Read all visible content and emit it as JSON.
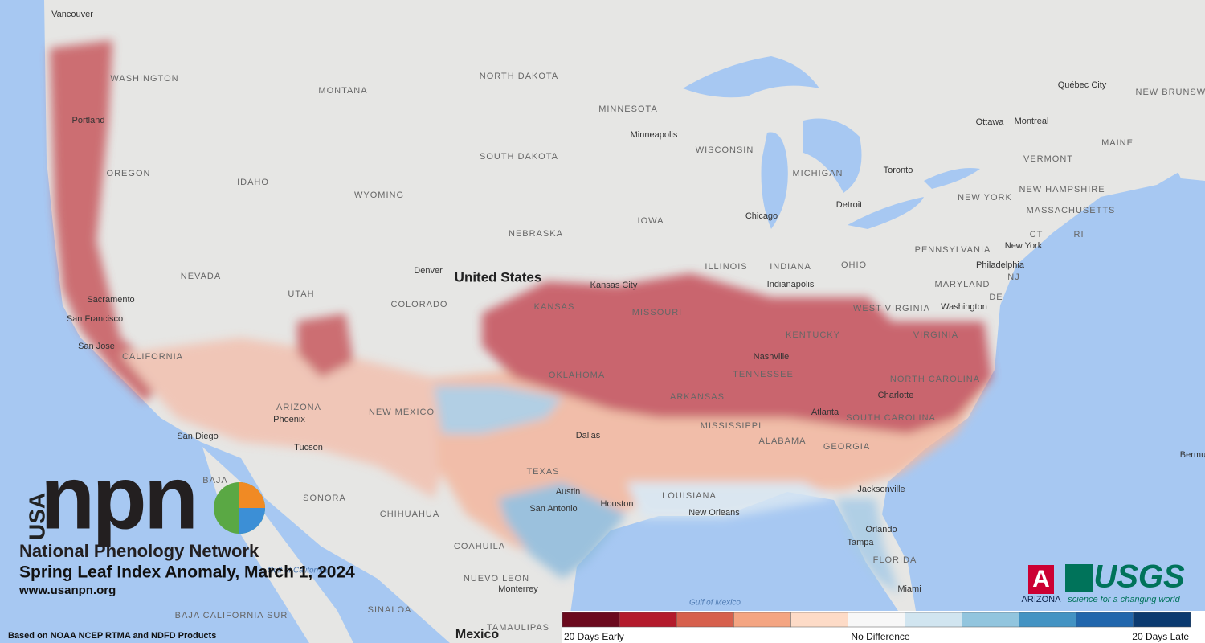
{
  "map": {
    "places": [
      "Vancouver",
      "WASHINGTON",
      "Portland",
      "OREGON",
      "IDAHO",
      "MONTANA",
      "WYOMING",
      "NORTH DAKOTA",
      "SOUTH DAKOTA",
      "MINNESOTA",
      "Minneapolis",
      "WISCONSIN",
      "MICHIGAN",
      "IOWA",
      "NEBRASKA",
      "NEVADA",
      "UTAH",
      "COLORADO",
      "Denver",
      "ILLINOIS",
      "INDIANA",
      "OHIO",
      "Chicago",
      "Indianapolis",
      "Detroit",
      "Toronto",
      "Ottawa",
      "Montreal",
      "Québec City",
      "NEW BRUNSWICK",
      "MAINE",
      "VERMONT",
      "NEW HAMPSHIRE",
      "NEW YORK",
      "MASSACHUSETTS",
      "CT",
      "RI",
      "PENNSYLVANIA",
      "New York",
      "Philadelphia",
      "NJ",
      "MARYLAND",
      "DE",
      "Washington",
      "WEST VIRGINIA",
      "VIRGINIA",
      "KENTUCKY",
      "MISSOURI",
      "Kansas City",
      "KANSAS",
      "San Francisco",
      "Sacramento",
      "San Jose",
      "CALIFORNIA",
      "OKLAHOMA",
      "ARKANSAS",
      "Nashville",
      "TENNESSEE",
      "NORTH CAROLINA",
      "Charlotte",
      "SOUTH CAROLINA",
      "Atlanta",
      "MISSISSIPPI",
      "ALABAMA",
      "GEORGIA",
      "Dallas",
      "TEXAS",
      "Austin",
      "San Antonio",
      "Houston",
      "LOUISIANA",
      "New Orleans",
      "Jacksonville",
      "Orlando",
      "Tampa",
      "FLORIDA",
      "Miami",
      "Phoenix",
      "Tucson",
      "San Diego",
      "ARIZONA",
      "NEW MEXICO",
      "SONORA",
      "CHIHUAHUA",
      "COAHUILA",
      "NUEVO LEON",
      "Monterrey",
      "SINALOA",
      "BAJA CALIFORNIA SUR",
      "BAJA",
      "TAMAULIPAS",
      "Gulf of Mexico",
      "Gulf of California",
      "Bermu"
    ],
    "country": "United States",
    "country2": "Mexico"
  },
  "logo": {
    "usa": "USA",
    "npn": "npn",
    "network": "National Phenology Network"
  },
  "title": "Spring Leaf Index Anomaly, March 1, 2024",
  "url": "www.usanpn.org",
  "credit": "Based on NOAA NCEP RTMA and NDFD Products",
  "partners": {
    "arizona": "ARIZONA",
    "arizona_mark": "A",
    "usgs": "USGS",
    "usgs_tagline": "science for a changing world"
  },
  "legend": {
    "colors": [
      "#6b0a1e",
      "#b31b2c",
      "#d6604d",
      "#f4a582",
      "#fddbc7",
      "#f7f7f7",
      "#d1e5f0",
      "#92c5de",
      "#4393c3",
      "#2166ac",
      "#0b3a70"
    ],
    "labels": [
      "20 Days Early",
      "No Difference",
      "20 Days Late"
    ]
  }
}
